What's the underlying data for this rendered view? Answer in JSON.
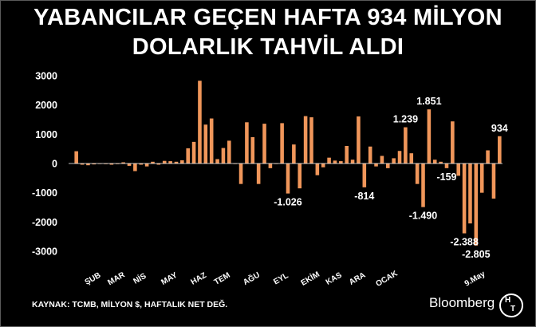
{
  "chart_data": {
    "type": "bar",
    "title_lines": [
      "YABANCILAR GEÇEN HAFTA 934 MİLYON",
      "DOLARLIK TAHVİL ALDI"
    ],
    "ylim": [
      -3000,
      3000
    ],
    "yticks": [
      3000,
      2000,
      1000,
      0,
      -1000,
      -2000,
      -3000
    ],
    "ytick_labels": [
      "3000",
      "2000",
      "1000",
      "0",
      "-1000",
      "-2000",
      "-3000"
    ],
    "bar_color": "#f0965a",
    "values": [
      420,
      -40,
      -60,
      -30,
      0,
      -20,
      -40,
      -20,
      40,
      -80,
      -260,
      -40,
      -100,
      60,
      -40,
      90,
      80,
      60,
      110,
      520,
      740,
      2830,
      1330,
      1540,
      150,
      530,
      780,
      0,
      -700,
      1410,
      900,
      -700,
      1360,
      -160,
      0,
      1380,
      -1026,
      650,
      -850,
      1620,
      1580,
      -400,
      -130,
      200,
      100,
      80,
      600,
      130,
      1610,
      -814,
      580,
      -100,
      260,
      -160,
      180,
      430,
      1239,
      350,
      -700,
      -1490,
      1851,
      130,
      60,
      -159,
      1440,
      -420,
      -2388,
      -2050,
      -2805,
      -1000,
      450,
      -1200,
      934
    ],
    "x_labels": [
      {
        "label": "ŞUB",
        "index": 3
      },
      {
        "label": "MAR",
        "index": 7
      },
      {
        "label": "NİS",
        "index": 11
      },
      {
        "label": "MAY",
        "index": 16
      },
      {
        "label": "HAZ",
        "index": 21
      },
      {
        "label": "TEM",
        "index": 25
      },
      {
        "label": "AĞU",
        "index": 30
      },
      {
        "label": "EYL",
        "index": 35
      },
      {
        "label": "EKİM",
        "index": 40
      },
      {
        "label": "KAS",
        "index": 44
      },
      {
        "label": "ARA",
        "index": 48
      },
      {
        "label": "OCAK",
        "index": 53
      },
      {
        "label": "9.May",
        "index": 68
      }
    ],
    "data_labels": [
      {
        "index": 36,
        "text": "-1.026"
      },
      {
        "index": 49,
        "text": "-814"
      },
      {
        "index": 56,
        "text": "1.239"
      },
      {
        "index": 59,
        "text": "-1.490"
      },
      {
        "index": 60,
        "text": "1.851"
      },
      {
        "index": 63,
        "text": "-159"
      },
      {
        "index": 66,
        "text": "-2.388"
      },
      {
        "index": 68,
        "text": "-2.805"
      },
      {
        "index": 72,
        "text": "934"
      }
    ],
    "source": "KAYNAK: TCMB, MİLYON $, HAFTALIK NET DEĞ.",
    "brand": "Bloomberg",
    "logo_text": [
      "H",
      "T"
    ]
  }
}
